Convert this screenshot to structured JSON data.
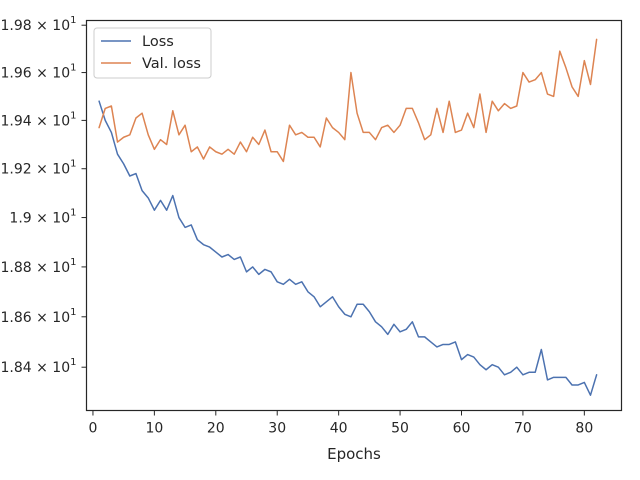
{
  "chart_data": {
    "type": "line",
    "title": "",
    "xlabel": "Epochs",
    "ylabel": "",
    "y_scale": "log",
    "xlim": [
      -1.05,
      86.05
    ],
    "ylim": [
      18.23,
      19.82
    ],
    "grid": false,
    "legend_position": "top-left",
    "x_ticks": [
      {
        "value": 0,
        "label": "0"
      },
      {
        "value": 10,
        "label": "10"
      },
      {
        "value": 20,
        "label": "20"
      },
      {
        "value": 30,
        "label": "30"
      },
      {
        "value": 40,
        "label": "40"
      },
      {
        "value": 50,
        "label": "50"
      },
      {
        "value": 60,
        "label": "60"
      },
      {
        "value": 70,
        "label": "70"
      },
      {
        "value": 80,
        "label": "80"
      }
    ],
    "y_ticks": [
      {
        "value": 18.4,
        "mant": "1.84",
        "sci": "1.84 × 10",
        "exp": "1"
      },
      {
        "value": 18.6,
        "mant": "1.86",
        "sci": "1.86 × 10",
        "exp": "1"
      },
      {
        "value": 18.8,
        "mant": "1.88",
        "sci": "1.88 × 10",
        "exp": "1"
      },
      {
        "value": 19.0,
        "mant": "1.9",
        "sci": "1.9 × 10",
        "exp": "1"
      },
      {
        "value": 19.2,
        "mant": "1.92",
        "sci": "1.92 × 10",
        "exp": "1"
      },
      {
        "value": 19.4,
        "mant": "1.94",
        "sci": "1.94 × 10",
        "exp": "1"
      },
      {
        "value": 19.6,
        "mant": "1.96",
        "sci": "1.96 × 10",
        "exp": "1"
      },
      {
        "value": 19.8,
        "mant": "1.98",
        "sci": "1.98 × 10",
        "exp": "1"
      }
    ],
    "x": [
      1,
      2,
      3,
      4,
      5,
      6,
      7,
      8,
      9,
      10,
      11,
      12,
      13,
      14,
      15,
      16,
      17,
      18,
      19,
      20,
      21,
      22,
      23,
      24,
      25,
      26,
      27,
      28,
      29,
      30,
      31,
      32,
      33,
      34,
      35,
      36,
      37,
      38,
      39,
      40,
      41,
      42,
      43,
      44,
      45,
      46,
      47,
      48,
      49,
      50,
      51,
      52,
      53,
      54,
      55,
      56,
      57,
      58,
      59,
      60,
      61,
      62,
      63,
      64,
      65,
      66,
      67,
      68,
      69,
      70,
      71,
      72,
      73,
      74,
      75,
      76,
      77,
      78,
      79,
      80,
      81,
      82
    ],
    "series": [
      {
        "name": "Loss",
        "color": "#4c72b0",
        "values": [
          19.48,
          19.4,
          19.35,
          19.26,
          19.22,
          19.17,
          19.18,
          19.11,
          19.08,
          19.03,
          19.07,
          19.03,
          19.09,
          19.0,
          18.96,
          18.97,
          18.91,
          18.89,
          18.88,
          18.86,
          18.84,
          18.85,
          18.83,
          18.84,
          18.78,
          18.8,
          18.77,
          18.79,
          18.78,
          18.74,
          18.73,
          18.75,
          18.73,
          18.74,
          18.7,
          18.68,
          18.64,
          18.66,
          18.68,
          18.64,
          18.61,
          18.6,
          18.65,
          18.65,
          18.62,
          18.58,
          18.56,
          18.53,
          18.57,
          18.54,
          18.55,
          18.58,
          18.52,
          18.52,
          18.5,
          18.48,
          18.49,
          18.49,
          18.5,
          18.43,
          18.45,
          18.44,
          18.41,
          18.39,
          18.41,
          18.4,
          18.37,
          18.38,
          18.4,
          18.37,
          18.38,
          18.38,
          18.47,
          18.35,
          18.36,
          18.36,
          18.36,
          18.33,
          18.33,
          18.34,
          18.29,
          18.37
        ]
      },
      {
        "name": "Val. loss",
        "color": "#dd8452",
        "values": [
          19.37,
          19.45,
          19.46,
          19.31,
          19.33,
          19.34,
          19.41,
          19.43,
          19.34,
          19.28,
          19.32,
          19.3,
          19.44,
          19.34,
          19.38,
          19.27,
          19.29,
          19.24,
          19.29,
          19.27,
          19.26,
          19.28,
          19.26,
          19.31,
          19.27,
          19.33,
          19.3,
          19.36,
          19.27,
          19.27,
          19.23,
          19.38,
          19.34,
          19.35,
          19.33,
          19.33,
          19.29,
          19.41,
          19.37,
          19.35,
          19.32,
          19.6,
          19.43,
          19.35,
          19.35,
          19.32,
          19.37,
          19.38,
          19.35,
          19.38,
          19.45,
          19.45,
          19.39,
          19.32,
          19.34,
          19.45,
          19.35,
          19.48,
          19.35,
          19.36,
          19.43,
          19.37,
          19.51,
          19.35,
          19.48,
          19.44,
          19.47,
          19.45,
          19.46,
          19.6,
          19.56,
          19.57,
          19.6,
          19.51,
          19.5,
          19.69,
          19.62,
          19.54,
          19.5,
          19.65,
          19.55,
          19.74
        ]
      }
    ]
  }
}
